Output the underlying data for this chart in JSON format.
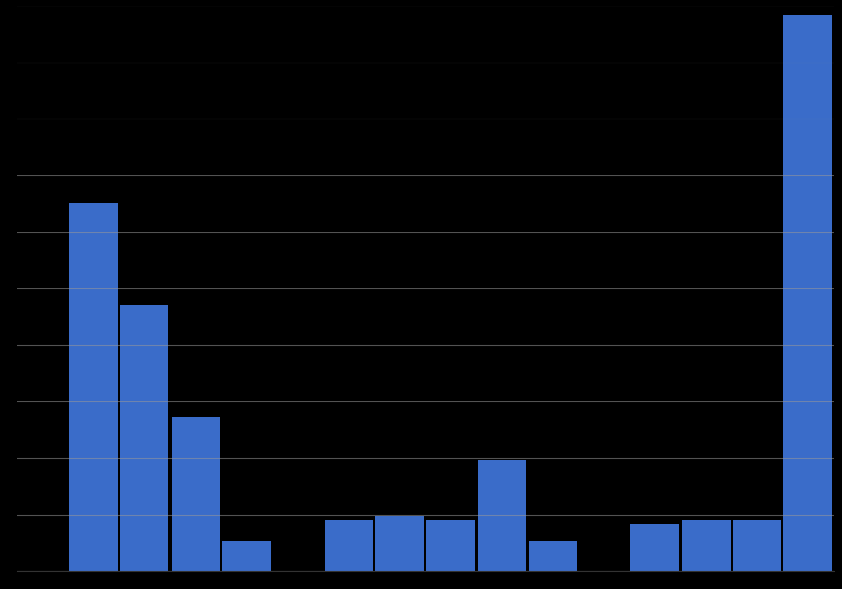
{
  "bar_values": [
    0,
    430,
    310,
    180,
    35,
    0,
    60,
    65,
    60,
    130,
    35,
    0,
    55,
    60,
    60,
    650
  ],
  "bar_color": "#3a6cc9",
  "background_color": "#000000",
  "grid_color": "#999999",
  "ylim": [
    0,
    660
  ],
  "num_gridlines": 10,
  "bar_width": 0.95,
  "figsize": [
    10.35,
    7.25
  ],
  "dpi": 100
}
